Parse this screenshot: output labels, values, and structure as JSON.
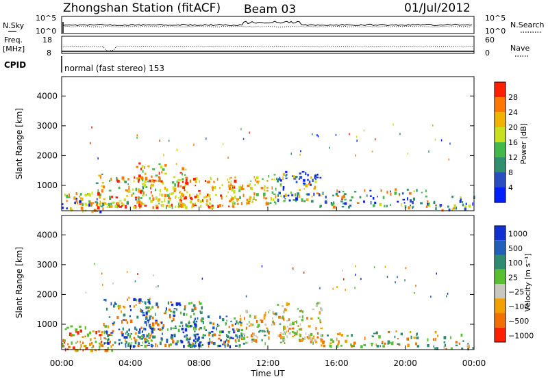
{
  "header": {
    "station": "Zhongshan Station (fitACF)",
    "beam": "Beam 03",
    "date": "01/Jul/2012"
  },
  "nsky_panel": {
    "left_label": "N.Sky",
    "left_ticks": [
      "10^5",
      "10^0"
    ],
    "right_ticks": [
      "10^5",
      "10^0"
    ],
    "right_label": "N.Search"
  },
  "freq_panel": {
    "left_label_1": "Freq.",
    "left_label_2": "[MHz]",
    "left_ticks": [
      "18",
      "8"
    ],
    "right_ticks": [
      "60",
      "0"
    ],
    "right_label": "Nave"
  },
  "cpid_panel": {
    "label": "CPID",
    "mode_text": "normal (fast stereo) 153"
  },
  "chart_data": [
    {
      "type": "heatmap",
      "title": "",
      "quantity": "Power",
      "xlabel": "",
      "ylabel": "Slant Range [km]",
      "yticks": [
        "1000",
        "2000",
        "3000",
        "4000"
      ],
      "ylim": [
        150,
        4650
      ],
      "colorbar_label": "Power [dB]",
      "colorbar_ticks": [
        "4",
        "8",
        "12",
        "16",
        "20",
        "24",
        "28"
      ],
      "colorbar_colors": [
        "#0020ff",
        "#2a4ec0",
        "#2f8f6f",
        "#44b84a",
        "#c8e020",
        "#f0b400",
        "#ff7800",
        "#ff2000"
      ]
    },
    {
      "type": "heatmap",
      "title": "",
      "quantity": "Velocity",
      "xlabel": "Time UT",
      "ylabel": "Slant Range [km]",
      "xticks": [
        "00:00",
        "04:00",
        "08:00",
        "12:00",
        "16:00",
        "20:00",
        "00:00"
      ],
      "yticks": [
        "1000",
        "2000",
        "3000",
        "4000"
      ],
      "ylim": [
        150,
        4650
      ],
      "colorbar_label": "Velocity [m s⁻¹]",
      "colorbar_ticks": [
        "1000",
        "500",
        "100",
        "25",
        "−25",
        "−100",
        "−500",
        "−1000"
      ],
      "colorbar_colors": [
        "#1030d0",
        "#2060b8",
        "#2e8a70",
        "#58c030",
        "#c8c8c0",
        "#f0a000",
        "#f07000",
        "#ff2000"
      ]
    }
  ]
}
